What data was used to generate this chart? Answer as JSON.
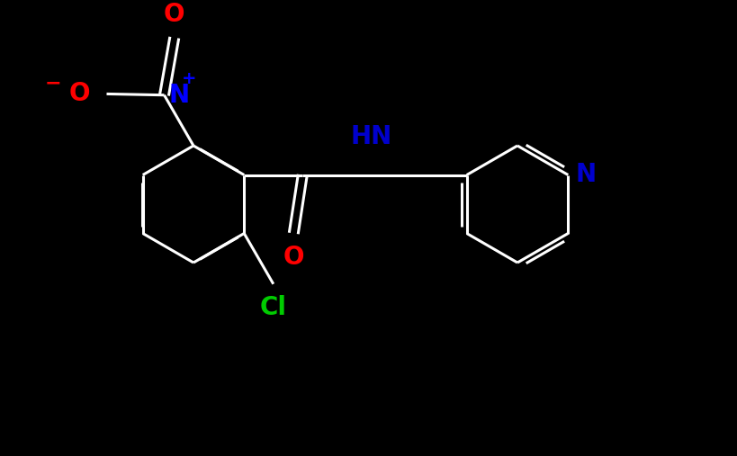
{
  "background_color": "#000000",
  "bond_color": "#ffffff",
  "bond_width": 2.2,
  "atom_colors": {
    "N_nitro": "#0000ff",
    "N_pyridine": "#0000cd",
    "O_nitro_top": "#ff0000",
    "O_nitro_left": "#ff0000",
    "O_amide": "#ff0000",
    "Cl": "#00cc00",
    "HN": "#0000cd"
  },
  "figsize": [
    8.19,
    5.07
  ],
  "dpi": 100,
  "xlim": [
    0,
    8.19
  ],
  "ylim": [
    0,
    5.07
  ]
}
